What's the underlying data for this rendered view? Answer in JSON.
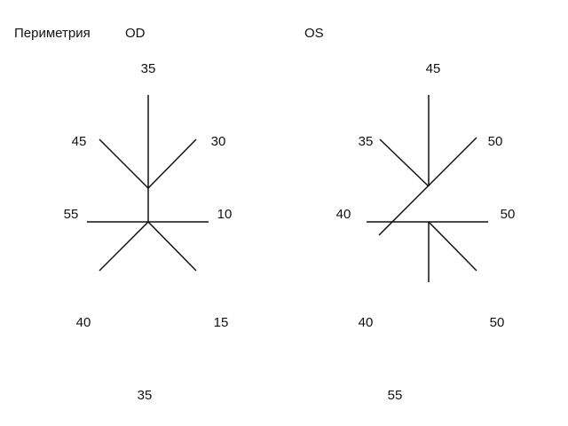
{
  "header": {
    "title": "Периметрия",
    "od_label": "OD",
    "os_label": "OS"
  },
  "od": {
    "top": "35",
    "upper_left": "45",
    "upper_right": "30",
    "left": "55",
    "right": "10",
    "lower_left": "40",
    "lower_right": "15",
    "bottom": "35"
  },
  "os": {
    "top": "45",
    "upper_left": "35",
    "upper_right": "50",
    "left": "40",
    "right": "50",
    "lower_left": "40",
    "lower_right": "50",
    "bottom": "55"
  },
  "colors": {
    "line": "#111111",
    "text": "#111111",
    "background": "#ffffff"
  }
}
